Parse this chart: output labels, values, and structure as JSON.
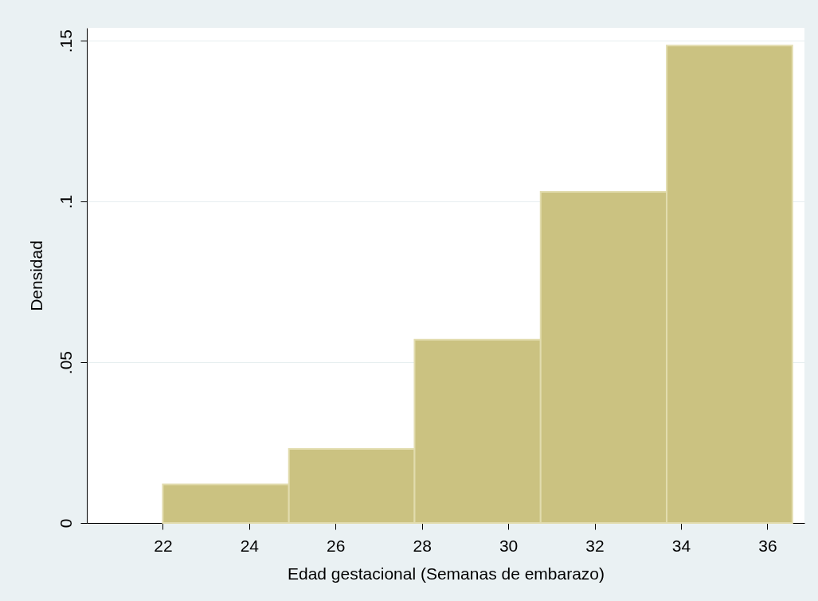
{
  "chart_data": {
    "type": "histogram",
    "xlabel": "Edad gestacional (Semanas de embarazo)",
    "ylabel": "Densidad",
    "bins": [
      22,
      24.92,
      27.83,
      30.75,
      33.67,
      36.58
    ],
    "values": [
      0.012,
      0.023,
      0.057,
      0.103,
      0.1485
    ],
    "color": "#cbc281",
    "xlim": [
      20.24,
      36.86
    ],
    "xticks": [
      22,
      24,
      26,
      28,
      30,
      32,
      34,
      36
    ],
    "ylim": [
      0,
      0.154
    ],
    "yticks": [
      {
        "value": 0,
        "label": "0"
      },
      {
        "value": 0.05,
        "label": ".05"
      },
      {
        "value": 0.1,
        "label": ".1"
      },
      {
        "value": 0.15,
        "label": ".15"
      }
    ],
    "grid": "y"
  }
}
